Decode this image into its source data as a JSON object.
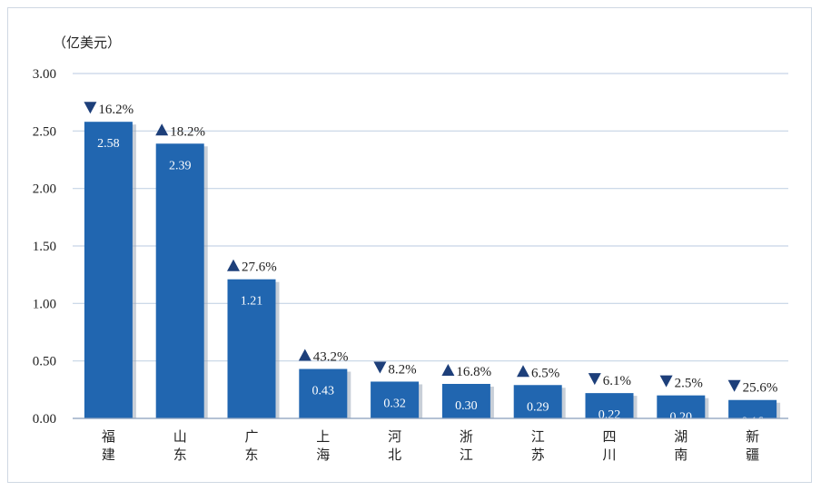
{
  "chart_data": {
    "type": "bar",
    "unit_label": "（亿美元）",
    "categories": [
      "福建",
      "山东",
      "广东",
      "上海",
      "河北",
      "浙江",
      "江苏",
      "四川",
      "湖南",
      "新疆"
    ],
    "values": [
      2.58,
      2.39,
      1.21,
      0.43,
      0.32,
      0.3,
      0.29,
      0.22,
      0.2,
      0.16
    ],
    "value_labels": [
      "2.58",
      "2.39",
      "1.21",
      "0.43",
      "0.32",
      "0.30",
      "0.29",
      "0.22",
      "0.20",
      "0.16"
    ],
    "changes": [
      {
        "direction": "down",
        "text": "16.2%"
      },
      {
        "direction": "up",
        "text": "18.2%"
      },
      {
        "direction": "up",
        "text": "27.6%"
      },
      {
        "direction": "up",
        "text": "43.2%"
      },
      {
        "direction": "down",
        "text": "8.2%"
      },
      {
        "direction": "up",
        "text": "16.8%"
      },
      {
        "direction": "up",
        "text": "6.5%"
      },
      {
        "direction": "down",
        "text": "6.1%"
      },
      {
        "direction": "down",
        "text": "2.5%"
      },
      {
        "direction": "down",
        "text": "25.6%"
      }
    ],
    "ylim": [
      0,
      3
    ],
    "yticks": [
      "0.00",
      "0.50",
      "1.00",
      "1.50",
      "2.00",
      "2.50",
      "3.00"
    ],
    "ytick_values": [
      0,
      0.5,
      1,
      1.5,
      2,
      2.5,
      3
    ],
    "grid": true,
    "colors": {
      "bar": "#2166b0",
      "grid": "#c6d4e6",
      "marker": "#1d3f7a"
    }
  }
}
